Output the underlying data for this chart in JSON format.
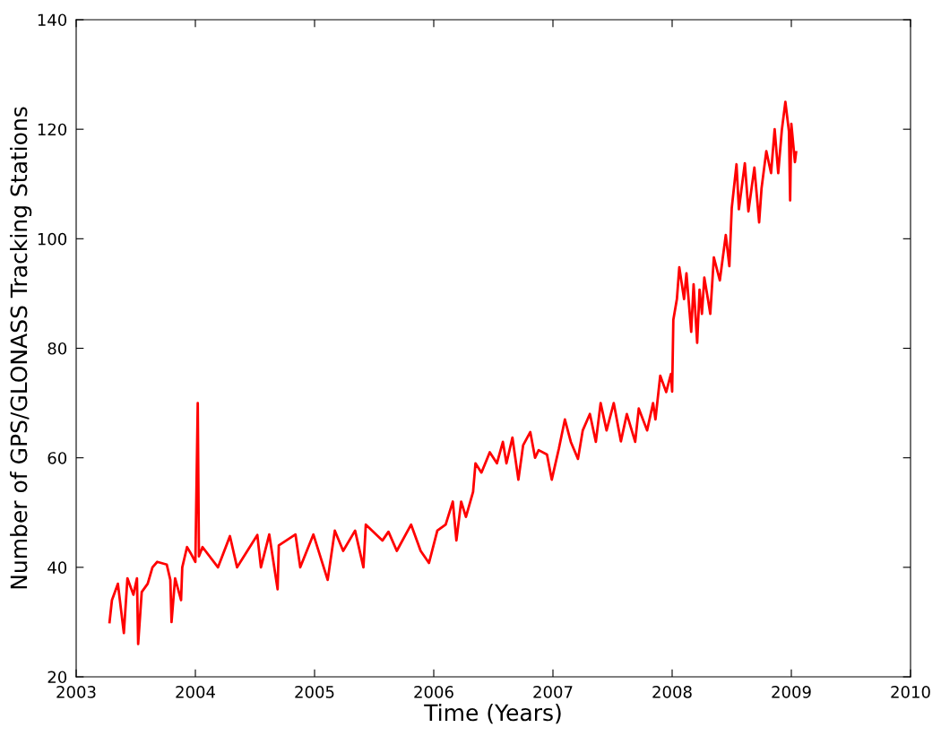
{
  "chart_data": {
    "type": "line",
    "xlabel": "Time (Years)",
    "ylabel": "Number of GPS/GLONASS Tracking Stations",
    "xlim": [
      2003,
      2010
    ],
    "xticks": [
      2003,
      2004,
      2005,
      2006,
      2007,
      2008,
      2009,
      2010
    ],
    "ylim": [
      20,
      140
    ],
    "yticks": [
      20,
      40,
      60,
      80,
      100,
      120,
      140
    ],
    "grid": false,
    "series": [
      {
        "color": "#ff0000",
        "x": [
          2003.28,
          2003.3,
          2003.35,
          2003.4,
          2003.43,
          2003.48,
          2003.51,
          2003.52,
          2003.55,
          2003.6,
          2003.64,
          2003.68,
          2003.76,
          2003.79,
          2003.8,
          2003.83,
          2003.88,
          2003.89,
          2003.93,
          2003.96,
          2004.0,
          2004.02,
          2004.03,
          2004.06,
          2004.19,
          2004.29,
          2004.35,
          2004.52,
          2004.55,
          2004.62,
          2004.69,
          2004.7,
          2004.84,
          2004.88,
          2004.99,
          2005.11,
          2005.17,
          2005.24,
          2005.34,
          2005.41,
          2005.43,
          2005.57,
          2005.62,
          2005.69,
          2005.81,
          2005.89,
          2005.96,
          2006.03,
          2006.1,
          2006.16,
          2006.19,
          2006.23,
          2006.27,
          2006.33,
          2006.35,
          2006.4,
          2006.47,
          2006.53,
          2006.58,
          2006.61,
          2006.66,
          2006.71,
          2006.75,
          2006.81,
          2006.85,
          2006.88,
          2006.95,
          2006.99,
          2007.05,
          2007.1,
          2007.15,
          2007.21,
          2007.25,
          2007.31,
          2007.36,
          2007.4,
          2007.45,
          2007.51,
          2007.57,
          2007.62,
          2007.69,
          2007.72,
          2007.79,
          2007.84,
          2007.86,
          2007.9,
          2007.95,
          2007.99,
          2008.0,
          2008.01,
          2008.04,
          2008.06,
          2008.1,
          2008.12,
          2008.16,
          2008.18,
          2008.21,
          2008.23,
          2008.25,
          2008.27,
          2008.3,
          2008.32,
          2008.35,
          2008.4,
          2008.45,
          2008.48,
          2008.5,
          2008.54,
          2008.56,
          2008.61,
          2008.64,
          2008.69,
          2008.73,
          2008.75,
          2008.79,
          2008.83,
          2008.86,
          2008.89,
          2008.92,
          2008.95,
          2008.98,
          2008.99,
          2009.0,
          2009.03,
          2009.04
        ],
        "values": [
          30,
          34,
          37,
          28,
          38,
          35,
          38,
          26,
          35.5,
          37,
          40,
          41,
          40.5,
          37.7,
          30,
          38,
          34,
          40,
          43.7,
          42.6,
          41,
          70,
          42,
          43.7,
          40,
          45.7,
          40,
          45.9,
          40,
          46,
          36,
          44,
          46,
          40,
          46,
          37.7,
          46.7,
          43,
          46.7,
          40,
          47.8,
          44.9,
          46.5,
          43,
          47.8,
          43,
          40.8,
          46.7,
          47.8,
          52,
          44.9,
          52,
          49.2,
          53.8,
          59,
          57.3,
          61,
          59,
          62.9,
          59,
          63.7,
          56,
          62.3,
          64.7,
          60,
          61.4,
          60.6,
          56,
          61.7,
          67,
          62.9,
          59.8,
          65,
          68,
          62.9,
          70,
          65,
          70,
          63,
          68,
          62.9,
          69,
          65,
          70,
          67,
          75,
          72,
          75.3,
          72.1,
          85.2,
          89,
          94.8,
          89,
          93.7,
          83,
          91.7,
          81,
          90.7,
          86.3,
          92.9,
          89,
          86.3,
          96.6,
          92.4,
          100.7,
          95,
          105.6,
          113.6,
          105.4,
          113.8,
          105,
          113,
          103,
          109.2,
          116,
          112,
          120,
          112,
          119.8,
          125,
          119.6,
          107,
          121,
          114,
          115.8
        ]
      }
    ]
  }
}
